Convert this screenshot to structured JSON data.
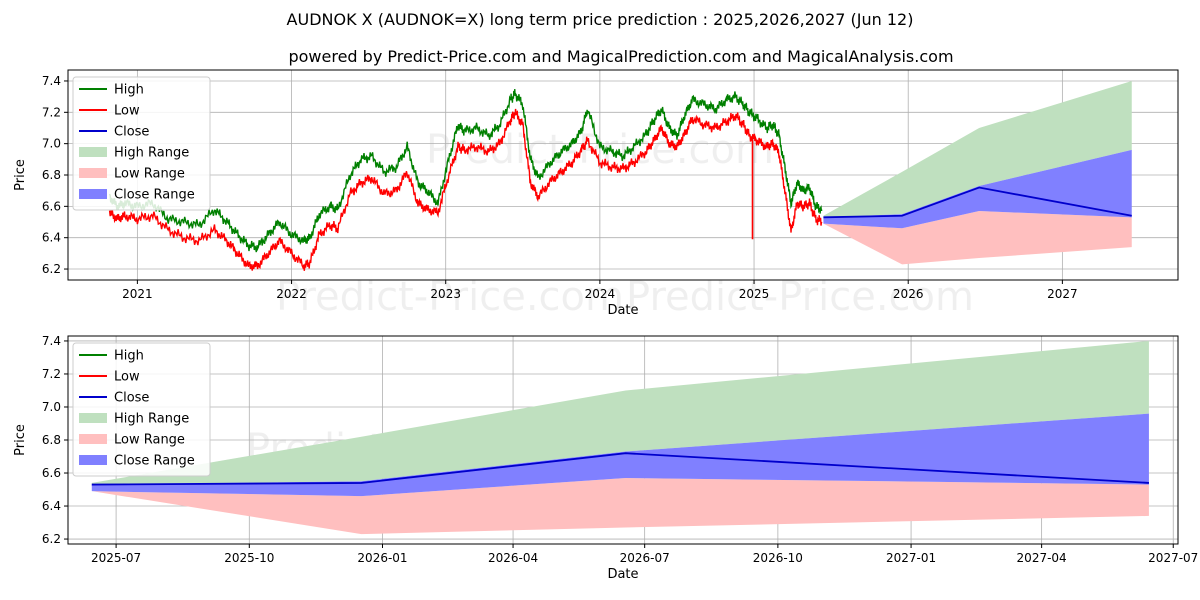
{
  "title_line1": "AUDNOK X (AUDNOK=X) long term price prediction : 2025,2026,2027 (Jun 12)",
  "title_line2": "powered by Predict-Price.com and MagicalPrediction.com and MagicalAnalysis.com",
  "watermark": "Predict-Price.com",
  "colors": {
    "high": "#008000",
    "low": "#ff0000",
    "close": "#0000cc",
    "high_range": "#bfe0bf",
    "low_range": "#ffbfbf",
    "close_range": "#8080ff"
  },
  "legend": {
    "high": "High",
    "low": "Low",
    "close": "Close",
    "high_range": "High Range",
    "low_range": "Low Range",
    "close_range": "Close Range"
  },
  "chart_data": [
    {
      "type": "line",
      "panel": "full-history",
      "xlabel": "Date",
      "ylabel": "Price",
      "xlim": [
        2020.55,
        2027.75
      ],
      "ylim": [
        6.13,
        7.47
      ],
      "x_ticks": [
        {
          "value": 2021,
          "label": "2021"
        },
        {
          "value": 2022,
          "label": "2022"
        },
        {
          "value": 2023,
          "label": "2023"
        },
        {
          "value": 2024,
          "label": "2024"
        },
        {
          "value": 2025,
          "label": "2025"
        },
        {
          "value": 2026,
          "label": "2026"
        },
        {
          "value": 2027,
          "label": "2027"
        }
      ],
      "y_ticks": [
        6.2,
        6.4,
        6.6,
        6.8,
        7.0,
        7.2,
        7.4
      ],
      "grid": true,
      "legend_position": "top-left",
      "history_x": [
        2020.82,
        2020.87,
        2020.92,
        2021.0,
        2021.1,
        2021.2,
        2021.3,
        2021.4,
        2021.5,
        2021.58,
        2021.65,
        2021.72,
        2021.78,
        2021.85,
        2021.92,
        2022.0,
        2022.08,
        2022.12,
        2022.18,
        2022.25,
        2022.3,
        2022.38,
        2022.45,
        2022.52,
        2022.6,
        2022.68,
        2022.75,
        2022.82,
        2022.88,
        2022.95,
        2023.02,
        2023.08,
        2023.12,
        2023.2,
        2023.28,
        2023.35,
        2023.42,
        2023.45,
        2023.5,
        2023.55,
        2023.6,
        2023.68,
        2023.75,
        2023.82,
        2023.88,
        2023.92,
        2024.0,
        2024.08,
        2024.15,
        2024.22,
        2024.3,
        2024.35,
        2024.4,
        2024.45,
        2024.5,
        2024.55,
        2024.6,
        2024.68,
        2024.75,
        2024.82,
        2024.88,
        2024.93,
        2024.97,
        2025.02,
        2025.08,
        2025.12,
        2025.16,
        2025.2,
        2025.24,
        2025.28,
        2025.32,
        2025.36,
        2025.4,
        2025.44
      ],
      "history_high": [
        6.66,
        6.6,
        6.62,
        6.6,
        6.62,
        6.52,
        6.5,
        6.48,
        6.58,
        6.5,
        6.42,
        6.35,
        6.34,
        6.42,
        6.5,
        6.42,
        6.38,
        6.4,
        6.55,
        6.6,
        6.58,
        6.8,
        6.9,
        6.92,
        6.82,
        6.85,
        6.98,
        6.75,
        6.7,
        6.62,
        6.9,
        7.12,
        7.08,
        7.1,
        7.05,
        7.12,
        7.28,
        7.32,
        7.25,
        6.9,
        6.78,
        6.88,
        6.95,
        7.0,
        7.08,
        7.22,
        6.98,
        6.95,
        6.92,
        6.98,
        7.06,
        7.15,
        7.22,
        7.1,
        7.05,
        7.18,
        7.28,
        7.25,
        7.22,
        7.28,
        7.3,
        7.25,
        7.2,
        7.16,
        7.1,
        7.12,
        7.06,
        6.85,
        6.62,
        6.75,
        6.7,
        6.72,
        6.6,
        6.58
      ],
      "history_low": [
        6.56,
        6.52,
        6.54,
        6.52,
        6.54,
        6.45,
        6.4,
        6.38,
        6.45,
        6.38,
        6.3,
        6.22,
        6.22,
        6.3,
        6.38,
        6.3,
        6.22,
        6.24,
        6.42,
        6.48,
        6.46,
        6.68,
        6.75,
        6.78,
        6.68,
        6.7,
        6.82,
        6.62,
        6.58,
        6.56,
        6.8,
        6.98,
        6.96,
        6.98,
        6.95,
        7.0,
        7.15,
        7.2,
        7.12,
        6.75,
        6.66,
        6.76,
        6.82,
        6.88,
        6.96,
        7.02,
        6.88,
        6.85,
        6.84,
        6.88,
        6.95,
        7.02,
        7.1,
        7.0,
        6.98,
        7.06,
        7.16,
        7.12,
        7.1,
        7.14,
        7.18,
        7.12,
        7.05,
        7.02,
        6.98,
        7.0,
        6.95,
        6.7,
        6.44,
        6.62,
        6.6,
        6.62,
        6.52,
        6.5
      ],
      "history_spike": {
        "x": 2024.99,
        "top": 7.05,
        "bottom": 6.39
      },
      "forecast": {
        "x": [
          2025.45,
          2025.96,
          2026.46,
          2027.45
        ],
        "close": [
          6.53,
          6.54,
          6.72,
          6.54
        ],
        "high_range_upper": [
          6.54,
          6.82,
          7.1,
          7.4
        ],
        "low_range_lower": [
          6.49,
          6.23,
          6.27,
          6.34
        ],
        "close_range_upper": [
          6.53,
          6.55,
          6.73,
          6.96
        ],
        "close_range_lower": [
          6.49,
          6.46,
          6.57,
          6.53
        ]
      }
    },
    {
      "type": "area",
      "panel": "forecast-zoom",
      "xlabel": "Date",
      "ylabel": "Price",
      "xlim": [
        2025.405,
        2027.505
      ],
      "ylim": [
        6.17,
        7.43
      ],
      "x_ticks": [
        {
          "value": 2025.496,
          "label": "2025-07"
        },
        {
          "value": 2025.748,
          "label": "2025-10"
        },
        {
          "value": 2026.0,
          "label": "2026-01"
        },
        {
          "value": 2026.247,
          "label": "2026-04"
        },
        {
          "value": 2026.496,
          "label": "2026-07"
        },
        {
          "value": 2026.748,
          "label": "2026-10"
        },
        {
          "value": 2027.0,
          "label": "2027-01"
        },
        {
          "value": 2027.247,
          "label": "2027-04"
        },
        {
          "value": 2027.496,
          "label": "2027-07"
        }
      ],
      "y_ticks": [
        6.2,
        6.4,
        6.6,
        6.8,
        7.0,
        7.2,
        7.4
      ],
      "grid": true,
      "legend_position": "top-left",
      "forecast": {
        "x": [
          2025.45,
          2025.96,
          2026.46,
          2027.45
        ],
        "close": [
          6.53,
          6.54,
          6.72,
          6.54
        ],
        "high_range_upper": [
          6.54,
          6.82,
          7.1,
          7.4
        ],
        "low_range_lower": [
          6.49,
          6.23,
          6.27,
          6.34
        ],
        "close_range_upper": [
          6.53,
          6.55,
          6.73,
          6.96
        ],
        "close_range_lower": [
          6.49,
          6.46,
          6.57,
          6.53
        ]
      }
    }
  ]
}
